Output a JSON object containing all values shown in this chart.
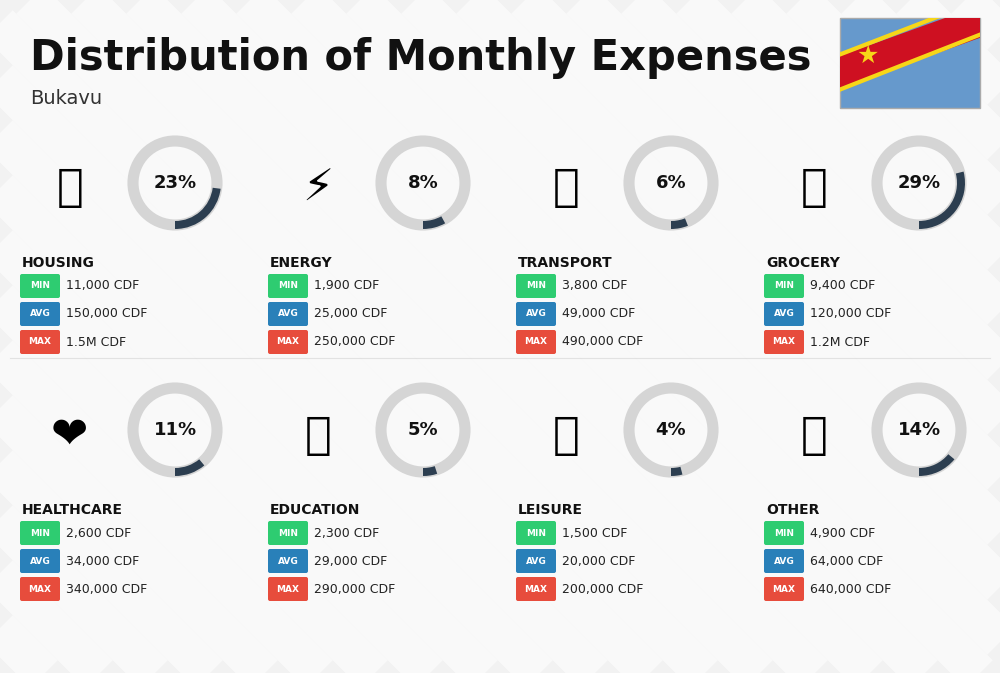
{
  "title": "Distribution of Monthly Expenses",
  "subtitle": "Bukavu",
  "background_color": "#f2f2f2",
  "stripe_color": "#e8e8e8",
  "categories": [
    {
      "name": "HOUSING",
      "percent": 23,
      "min": "11,000 CDF",
      "avg": "150,000 CDF",
      "max": "1.5M CDF",
      "icon": "🏗️",
      "row": 0,
      "col": 0
    },
    {
      "name": "ENERGY",
      "percent": 8,
      "min": "1,900 CDF",
      "avg": "25,000 CDF",
      "max": "250,000 CDF",
      "icon": "⚡",
      "row": 0,
      "col": 1
    },
    {
      "name": "TRANSPORT",
      "percent": 6,
      "min": "3,800 CDF",
      "avg": "49,000 CDF",
      "max": "490,000 CDF",
      "icon": "🚌",
      "row": 0,
      "col": 2
    },
    {
      "name": "GROCERY",
      "percent": 29,
      "min": "9,400 CDF",
      "avg": "120,000 CDF",
      "max": "1.2M CDF",
      "icon": "🍫",
      "row": 0,
      "col": 3
    },
    {
      "name": "HEALTHCARE",
      "percent": 11,
      "min": "2,600 CDF",
      "avg": "34,000 CDF",
      "max": "340,000 CDF",
      "icon": "❤️",
      "row": 1,
      "col": 0
    },
    {
      "name": "EDUCATION",
      "percent": 5,
      "min": "2,300 CDF",
      "avg": "29,000 CDF",
      "max": "290,000 CDF",
      "icon": "🎓",
      "row": 1,
      "col": 1
    },
    {
      "name": "LEISURE",
      "percent": 4,
      "min": "1,500 CDF",
      "avg": "20,000 CDF",
      "max": "200,000 CDF",
      "icon": "🛍️",
      "row": 1,
      "col": 2
    },
    {
      "name": "OTHER",
      "percent": 14,
      "min": "4,900 CDF",
      "avg": "64,000 CDF",
      "max": "640,000 CDF",
      "icon": "💰",
      "row": 1,
      "col": 3
    }
  ],
  "min_bg": "#2ecc71",
  "avg_bg": "#2980b9",
  "max_bg": "#e74c3c",
  "arc_dark": "#2c3e50",
  "arc_light": "#d5d5d5",
  "title_fontsize": 30,
  "subtitle_fontsize": 14,
  "cat_name_fontsize": 10,
  "pct_fontsize": 13,
  "value_fontsize": 9,
  "badge_fontsize": 6.5,
  "icon_fontsize": 32,
  "flag": {
    "blue": "#6699CC",
    "red": "#CE1021",
    "yellow": "#F7D618"
  }
}
